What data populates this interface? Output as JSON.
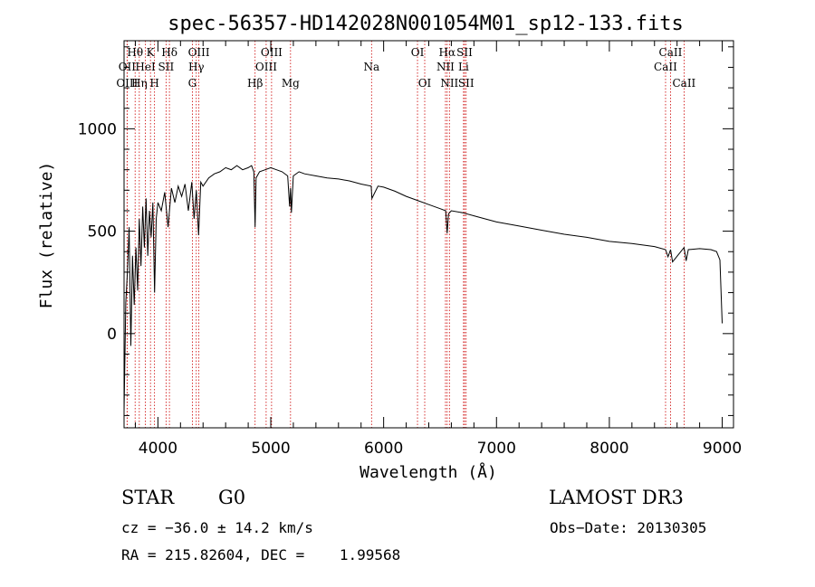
{
  "chart_data": {
    "type": "line",
    "title": "spec-56357-HD142028N001054M01_sp12-133.fits",
    "xlabel": "Wavelength (Å)",
    "ylabel": "Flux (relative)",
    "xlim": [
      3700,
      9100
    ],
    "ylim": [
      -460,
      1430
    ],
    "xticks": [
      4000,
      5000,
      6000,
      7000,
      8000,
      9000
    ],
    "xtick_labels": [
      "4000",
      "5000",
      "6000",
      "7000",
      "8000",
      "9000"
    ],
    "yticks": [
      0,
      500,
      1000
    ],
    "ytick_labels": [
      "0",
      "500",
      "1000"
    ],
    "series": [
      {
        "name": "spectrum",
        "x": [
          3700,
          3715,
          3730,
          3745,
          3760,
          3775,
          3790,
          3805,
          3820,
          3835,
          3850,
          3865,
          3880,
          3895,
          3910,
          3925,
          3940,
          3955,
          3970,
          3985,
          4000,
          4030,
          4060,
          4090,
          4120,
          4150,
          4180,
          4210,
          4240,
          4270,
          4300,
          4320,
          4340,
          4360,
          4380,
          4400,
          4450,
          4500,
          4550,
          4600,
          4650,
          4700,
          4750,
          4800,
          4830,
          4850,
          4861,
          4870,
          4900,
          4950,
          5000,
          5050,
          5100,
          5150,
          5167,
          5175,
          5183,
          5200,
          5250,
          5300,
          5400,
          5500,
          5600,
          5700,
          5800,
          5890,
          5896,
          5950,
          6000,
          6100,
          6200,
          6300,
          6400,
          6500,
          6550,
          6563,
          6575,
          6600,
          6700,
          6800,
          6900,
          7000,
          7200,
          7400,
          7600,
          7800,
          8000,
          8200,
          8400,
          8498,
          8520,
          8542,
          8560,
          8662,
          8680,
          8700,
          8800,
          8900,
          8950,
          8980,
          9000
        ],
        "y": [
          -380,
          150,
          300,
          520,
          -60,
          380,
          140,
          420,
          210,
          560,
          330,
          620,
          420,
          660,
          380,
          600,
          470,
          640,
          200,
          560,
          640,
          600,
          690,
          520,
          710,
          640,
          720,
          670,
          730,
          600,
          740,
          560,
          700,
          480,
          740,
          720,
          760,
          780,
          790,
          810,
          800,
          820,
          800,
          810,
          820,
          790,
          520,
          760,
          790,
          800,
          810,
          800,
          790,
          770,
          620,
          710,
          590,
          770,
          790,
          780,
          770,
          760,
          755,
          745,
          730,
          720,
          660,
          720,
          715,
          695,
          670,
          650,
          630,
          610,
          600,
          490,
          585,
          600,
          590,
          575,
          560,
          545,
          525,
          505,
          485,
          470,
          450,
          440,
          425,
          410,
          375,
          410,
          350,
          420,
          355,
          410,
          415,
          410,
          400,
          360,
          50
        ]
      }
    ],
    "lines": [
      {
        "name": "Hθ",
        "wave": 3798,
        "row": 0
      },
      {
        "name": "K",
        "wave": 3934,
        "row": 0
      },
      {
        "name": "Hδ",
        "wave": 4102,
        "row": 0
      },
      {
        "name": "OIII",
        "wave": 4363,
        "row": 0
      },
      {
        "name": "OIII",
        "wave": 5007,
        "row": 0
      },
      {
        "name": "OI",
        "wave": 6300,
        "row": 0
      },
      {
        "name": "Hα",
        "wave": 6563,
        "row": 0
      },
      {
        "name": "SII",
        "wave": 6717,
        "row": 0
      },
      {
        "name": "CaII",
        "wave": 8542,
        "row": 0
      },
      {
        "name": "OII",
        "wave": 3727,
        "row": 1
      },
      {
        "name": "HeI",
        "wave": 3889,
        "row": 1
      },
      {
        "name": "SII",
        "wave": 4072,
        "row": 1
      },
      {
        "name": "Hγ",
        "wave": 4340,
        "row": 1
      },
      {
        "name": "OIII",
        "wave": 4959,
        "row": 1
      },
      {
        "name": "Na",
        "wave": 5893,
        "row": 1
      },
      {
        "name": "NII",
        "wave": 6548,
        "row": 1
      },
      {
        "name": "Li",
        "wave": 6708,
        "row": 1
      },
      {
        "name": "CaII",
        "wave": 8498,
        "row": 1
      },
      {
        "name": "OIII",
        "wave": 3727,
        "row": 2
      },
      {
        "name": "Hη",
        "wave": 3835,
        "row": 2
      },
      {
        "name": "H",
        "wave": 3970,
        "row": 2
      },
      {
        "name": "G",
        "wave": 4305,
        "row": 2
      },
      {
        "name": "Hβ",
        "wave": 4861,
        "row": 2
      },
      {
        "name": "Mg",
        "wave": 5175,
        "row": 2
      },
      {
        "name": "OI",
        "wave": 6364,
        "row": 2
      },
      {
        "name": "NII",
        "wave": 6583,
        "row": 2
      },
      {
        "name": "SII",
        "wave": 6731,
        "row": 2
      },
      {
        "name": "CaII",
        "wave": 8662,
        "row": 2
      }
    ],
    "colors": {
      "spectrum": "#000000",
      "line_marker": "#cc0000"
    }
  },
  "info": {
    "object_class": "STAR",
    "subclass": "G0",
    "survey": "LAMOST DR3",
    "cz": "cz = −36.0 ± 14.2 km/s",
    "obs_date": "Obs−Date: 20130305",
    "coords": "RA = 215.82604, DEC =    1.99568"
  }
}
